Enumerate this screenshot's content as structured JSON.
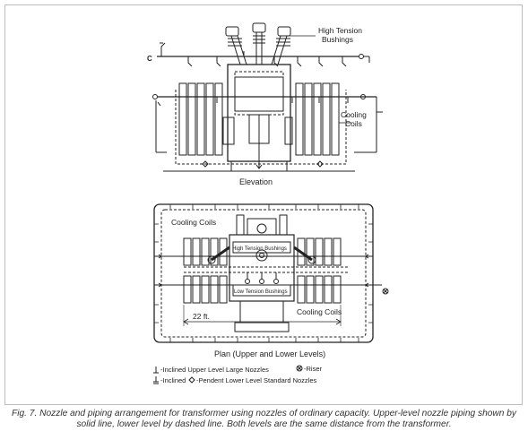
{
  "labels": {
    "high_tension_bushings": [
      "High Tension",
      "Bushings"
    ],
    "cooling_coils_elev": [
      "Cooling",
      "Coils"
    ],
    "c_marker": "C",
    "elevation": "Elevation",
    "plan_cooling_coils_left": "Cooling Coils",
    "plan_cooling_coils_right": "Cooling Coils",
    "plan_high_tension": "High Tension Bushings",
    "plan_low_tension": "Low Tension Bushings",
    "dimension": "22 ft.",
    "plan_title": "Plan (Upper and Lower Levels)"
  },
  "legend": {
    "inclined_upper": "-Inclined Upper Level Large Nozzles",
    "riser": "-Riser",
    "inclined": "-Inclined",
    "pendent_lower": "-Pendent Lower Level Standard Nozzles"
  },
  "caption": "Fig. 7. Nozzle and piping arrangement for transformer using nozzles of ordinary capacity. Upper-level nozzle piping shown by solid line, lower level by dashed line. Both levels are the same distance from the transformer.",
  "legend_icons": [
    "inclined-nozzle-icon",
    "riser-icon",
    "inclined-lower-icon",
    "pendent-nozzle-icon"
  ]
}
